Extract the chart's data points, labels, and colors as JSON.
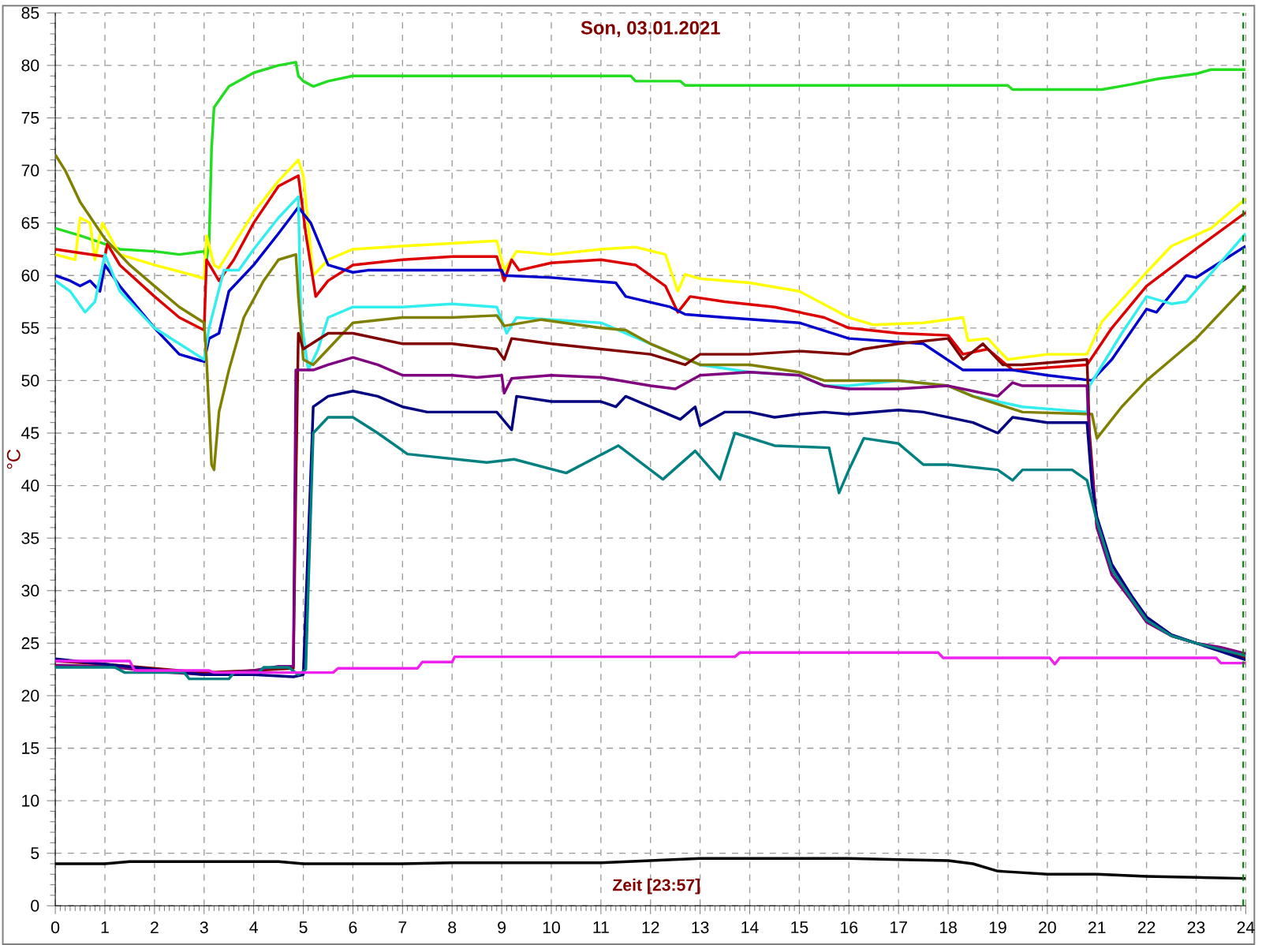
{
  "chart_data": {
    "type": "line",
    "title": "Son, 03.01.2021",
    "xlabel": "Zeit [23:57]",
    "ylabel": "°C",
    "xlim": [
      0,
      24
    ],
    "ylim": [
      0,
      85
    ],
    "xticks": [
      0,
      1,
      2,
      3,
      4,
      5,
      6,
      7,
      8,
      9,
      10,
      11,
      12,
      13,
      14,
      15,
      16,
      17,
      18,
      19,
      20,
      21,
      22,
      23,
      24
    ],
    "yticks": [
      0,
      5,
      10,
      15,
      20,
      25,
      30,
      35,
      40,
      45,
      50,
      55,
      60,
      65,
      70,
      75,
      80,
      85
    ],
    "grid": true,
    "ref_lines": [
      {
        "axis": "x",
        "value": 23.95,
        "color": "#008000",
        "line_style": "dashed"
      }
    ],
    "series": [
      {
        "color": "#22dd22",
        "x": [
          0,
          0.5,
          1,
          1.3,
          2,
          2.5,
          3,
          3.05,
          3.1,
          3.15,
          3.2,
          3.5,
          4,
          4.5,
          4.85,
          4.9,
          5,
          5.2,
          5.5,
          6,
          11.6,
          11.7,
          12.6,
          12.7,
          19.2,
          19.3,
          21.1,
          21.7,
          22.2,
          23,
          23.3,
          24
        ],
        "values": [
          64.5,
          63.8,
          63,
          62.5,
          62.3,
          62,
          62.3,
          61.5,
          63,
          72,
          76,
          78,
          79.3,
          80,
          80.3,
          79,
          78.5,
          78,
          78.5,
          79,
          79,
          78.5,
          78.5,
          78.1,
          78.1,
          77.7,
          77.7,
          78.2,
          78.7,
          79.2,
          79.6,
          79.6
        ]
      },
      {
        "color": "#ffff00",
        "x": [
          0,
          0.4,
          0.5,
          0.7,
          0.8,
          0.95,
          1.3,
          2,
          2.8,
          3.0,
          3.05,
          3.2,
          3.3,
          3.6,
          4,
          4.5,
          4.9,
          5.0,
          5.2,
          5.5,
          6,
          7,
          8.9,
          9.05,
          9.3,
          10,
          11,
          11.7,
          12.3,
          12.55,
          12.7,
          13,
          14,
          15,
          16,
          16.5,
          17.5,
          18.3,
          18.4,
          18.8,
          19.2,
          20,
          20.8,
          21.1,
          22,
          22.5,
          23.3,
          24
        ],
        "values": [
          62,
          61.5,
          65.5,
          65,
          61.5,
          65,
          62,
          61,
          60,
          59.7,
          63.8,
          61,
          60.7,
          63,
          66,
          69,
          71,
          69.5,
          60,
          61.5,
          62.5,
          62.8,
          63.3,
          60.5,
          62.3,
          62,
          62.5,
          62.7,
          62,
          58.5,
          60.1,
          59.7,
          59.3,
          58.5,
          56,
          55.3,
          55.5,
          56,
          53.8,
          54,
          52,
          52.5,
          52.5,
          55.6,
          60.3,
          62.8,
          64.5,
          67.3
        ]
      },
      {
        "color": "#dd0000",
        "x": [
          0,
          1,
          1.05,
          1.3,
          2,
          2.5,
          3,
          3.05,
          3.3,
          3.6,
          4,
          4.5,
          4.9,
          5.05,
          5.25,
          5.5,
          6,
          7,
          8,
          8.9,
          9.05,
          9.2,
          9.35,
          10,
          11,
          11.7,
          12.3,
          12.55,
          12.8,
          13.5,
          14.5,
          15.5,
          16,
          17,
          18,
          18.3,
          18.8,
          19.3,
          20.8,
          21.3,
          22,
          22.7,
          24
        ],
        "values": [
          62.5,
          61.8,
          63,
          61,
          58,
          56,
          54.8,
          61.5,
          59.5,
          61.5,
          65,
          68.5,
          69.5,
          64,
          58,
          59.5,
          61,
          61.5,
          61.8,
          61.8,
          59.5,
          61.5,
          60.5,
          61.2,
          61.5,
          61,
          59,
          56.5,
          58,
          57.5,
          57,
          56,
          55,
          54.5,
          54.3,
          52.5,
          53,
          51,
          51.5,
          55,
          59,
          61.5,
          66
        ]
      },
      {
        "color": "#0000cc",
        "x": [
          0,
          0.3,
          0.5,
          0.7,
          0.9,
          1.0,
          1.3,
          2,
          2.5,
          3,
          3.1,
          3.3,
          3.5,
          4,
          4.5,
          4.9,
          5.15,
          5.5,
          6,
          6.3,
          9.0,
          9.05,
          10,
          11.3,
          11.5,
          12.4,
          12.7,
          13.5,
          15,
          16,
          17.5,
          18.3,
          19.3,
          20,
          20.9,
          21.3,
          22,
          22.2,
          22.8,
          23,
          24
        ],
        "values": [
          60,
          59.5,
          59,
          59.5,
          58.5,
          61,
          59,
          55,
          52.5,
          51.8,
          54,
          54.5,
          58.5,
          61,
          64,
          66.5,
          65,
          61,
          60.3,
          60.5,
          60.5,
          60,
          59.8,
          59.3,
          58,
          57,
          56.3,
          56,
          55.5,
          54,
          53.5,
          51,
          51,
          50.5,
          50,
          52,
          56.8,
          56.5,
          60,
          59.8,
          62.8
        ]
      },
      {
        "color": "#33eeee",
        "x": [
          0,
          0.3,
          0.6,
          0.8,
          1.0,
          1.3,
          2,
          2.5,
          3,
          3.1,
          3.4,
          3.7,
          4,
          4.5,
          4.9,
          4.95,
          5.1,
          5.3,
          5.5,
          6,
          7,
          8,
          8.9,
          9.1,
          9.3,
          10,
          11,
          12,
          12.5,
          13,
          14,
          15,
          15.5,
          16,
          17,
          18,
          18.5,
          19.5,
          20.8,
          20.85,
          21.5,
          22,
          22.5,
          22.8,
          24
        ],
        "values": [
          59.5,
          58.5,
          56.5,
          57.5,
          62,
          58.5,
          55,
          53.5,
          52,
          55,
          60.5,
          60.5,
          62.5,
          65.5,
          67.5,
          56,
          51,
          53,
          56,
          57,
          57,
          57.3,
          57,
          54.5,
          56,
          55.8,
          55.5,
          53.5,
          52.5,
          51.5,
          50.8,
          50.5,
          49.5,
          49.5,
          50,
          49.5,
          48.5,
          47.5,
          47,
          49.5,
          54.5,
          58,
          57.3,
          57.5,
          64
        ]
      },
      {
        "color": "#808000",
        "x": [
          0,
          0.2,
          0.5,
          1,
          1.5,
          2,
          2.5,
          3,
          3.05,
          3.15,
          3.2,
          3.3,
          3.5,
          3.8,
          4.2,
          4.5,
          4.85,
          4.9,
          5.0,
          5.2,
          5.5,
          6,
          7,
          8,
          8.9,
          9.05,
          9.8,
          11,
          11.5,
          12,
          12.5,
          13,
          14,
          15,
          15.5,
          17,
          18,
          18.5,
          19.5,
          20.9,
          21,
          21.5,
          22,
          22.5,
          23,
          24
        ],
        "values": [
          71.5,
          70,
          67,
          63.5,
          61,
          59,
          57,
          55.5,
          52,
          42,
          41.5,
          47,
          51,
          56,
          59.5,
          61.5,
          62,
          58,
          52,
          51.5,
          53,
          55.5,
          56,
          56,
          56.2,
          55.2,
          55.8,
          55,
          54.8,
          53.5,
          52.5,
          51.5,
          51.5,
          50.8,
          50,
          50,
          49.5,
          48.5,
          47,
          46.8,
          44.5,
          47.5,
          50,
          52,
          54,
          59
        ]
      },
      {
        "color": "#800000",
        "x": [
          0,
          1,
          3,
          4,
          4.8,
          4.85,
          4.9,
          5,
          5.5,
          6,
          7,
          8,
          8.9,
          9.05,
          9.2,
          10,
          11,
          12,
          12.7,
          13,
          14,
          15,
          16,
          16.3,
          17,
          18,
          18.3,
          18.7,
          19.1,
          19.5,
          20.8,
          20.85,
          21.0,
          21.3,
          22,
          22.5,
          23,
          23.5,
          24
        ],
        "values": [
          23.3,
          23,
          22.2,
          22.4,
          22.6,
          40,
          54.5,
          53,
          54.5,
          54.5,
          53.5,
          53.5,
          53,
          52,
          54,
          53.5,
          53,
          52.5,
          51.5,
          52.5,
          52.5,
          52.8,
          52.5,
          53,
          53.5,
          54,
          52,
          53.5,
          51.5,
          51.5,
          52,
          45,
          36,
          32,
          27.2,
          25.7,
          25,
          24.4,
          23.6
        ]
      },
      {
        "color": "#800080",
        "x": [
          0,
          1,
          2,
          3,
          4,
          4.5,
          4.8,
          4.85,
          5.2,
          5.5,
          6,
          6.5,
          7,
          8,
          8.5,
          9.0,
          9.05,
          9.2,
          10,
          11,
          12,
          12.5,
          13,
          14,
          15,
          15.5,
          16,
          17,
          18,
          18.5,
          19,
          19.3,
          19.5,
          20.8,
          20.85,
          21.0,
          21.3,
          21.7,
          22,
          22.5,
          23,
          23.5,
          24
        ],
        "values": [
          22.9,
          22.8,
          22.3,
          22,
          22.4,
          22.8,
          22.8,
          51,
          51,
          51.5,
          52.2,
          51.5,
          50.5,
          50.5,
          50.3,
          50.5,
          48.8,
          50.2,
          50.5,
          50.3,
          49.5,
          49.2,
          50.5,
          50.8,
          50.5,
          49.5,
          49.2,
          49.2,
          49.5,
          49,
          48.5,
          49.8,
          49.5,
          49.5,
          44,
          36,
          31.5,
          29,
          27,
          25.7,
          25,
          24.6,
          24
        ]
      },
      {
        "color": "#000080",
        "x": [
          0,
          1,
          2,
          3,
          4,
          4.8,
          5.0,
          5.2,
          5.5,
          6,
          6.5,
          7,
          7.5,
          8,
          8.9,
          9.2,
          9.3,
          10,
          11,
          11.3,
          11.5,
          12,
          12.6,
          12.9,
          13.0,
          13.5,
          14,
          14.5,
          15,
          15.5,
          16,
          17,
          17.5,
          18.5,
          19,
          19.3,
          20,
          20.8,
          20.9,
          21.0,
          21.3,
          21.7,
          22,
          22.5,
          23,
          23.5,
          24
        ],
        "values": [
          23.5,
          23,
          22.5,
          22,
          22,
          21.8,
          22,
          47.5,
          48.5,
          49,
          48.5,
          47.5,
          47,
          47,
          47,
          45.3,
          48.5,
          48,
          48,
          47.5,
          48.5,
          47.5,
          46.3,
          47.5,
          45.7,
          47,
          47,
          46.5,
          46.8,
          47,
          46.8,
          47.2,
          47,
          46,
          45,
          46.5,
          46,
          46,
          40,
          37,
          32.5,
          29.5,
          27.5,
          25.8,
          25,
          24.2,
          23.4
        ]
      },
      {
        "color": "#008080",
        "x": [
          0,
          1.2,
          1.4,
          2.6,
          2.7,
          3.5,
          3.6,
          4.1,
          4.2,
          4.7,
          4.9,
          5.05,
          5.2,
          5.5,
          6,
          6.5,
          7.1,
          8.7,
          9.25,
          10.3,
          11.35,
          12.25,
          12.9,
          13.4,
          13.7,
          14.5,
          15.6,
          15.8,
          16,
          16.3,
          17,
          17.5,
          18,
          19,
          19.3,
          19.5,
          20.5,
          20.8,
          21.0,
          21.3,
          21.7,
          22,
          22.5,
          23,
          23.5,
          24
        ],
        "values": [
          22.7,
          22.7,
          22.2,
          22.2,
          21.6,
          21.6,
          22.2,
          22.2,
          22.7,
          22.7,
          22,
          22.5,
          45,
          46.5,
          46.5,
          45,
          43,
          42.2,
          42.5,
          41.2,
          43.8,
          40.6,
          43.3,
          40.6,
          45,
          43.8,
          43.6,
          39.3,
          41.5,
          44.5,
          44,
          42,
          42,
          41.5,
          40.5,
          41.5,
          41.5,
          40.5,
          36.6,
          32,
          29.2,
          27.2,
          25.7,
          25,
          24.4,
          23.8
        ]
      },
      {
        "color": "#ee22ee",
        "x": [
          0,
          1.5,
          1.6,
          3.1,
          3.2,
          5.6,
          5.7,
          7.3,
          7.4,
          8,
          8.05,
          13.7,
          13.8,
          17.8,
          17.9,
          20.05,
          20.15,
          20.25,
          23.4,
          23.5,
          24
        ],
        "values": [
          23.3,
          23.3,
          22.4,
          22.4,
          22.2,
          22.2,
          22.6,
          22.6,
          23.2,
          23.2,
          23.7,
          23.7,
          24.1,
          24.1,
          23.6,
          23.6,
          23,
          23.6,
          23.6,
          23.1,
          23.1
        ]
      },
      {
        "color": "#000000",
        "x": [
          0,
          1,
          1.5,
          4.5,
          5,
          7,
          8,
          11,
          12,
          13,
          16,
          17,
          18,
          18.5,
          19,
          20,
          21,
          22,
          23,
          24
        ],
        "values": [
          4,
          4,
          4.2,
          4.2,
          4,
          4,
          4.1,
          4.1,
          4.3,
          4.5,
          4.5,
          4.4,
          4.3,
          4,
          3.3,
          3,
          3,
          2.8,
          2.7,
          2.6
        ]
      }
    ]
  }
}
